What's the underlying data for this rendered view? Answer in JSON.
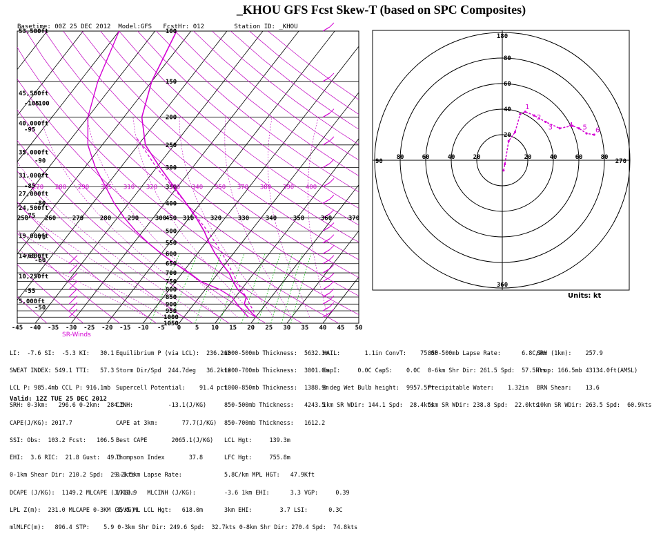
{
  "title": "_KHOU GFS Fcst Skew-T (based on SPC Composites)",
  "header": {
    "baseline_label": "Basetime:",
    "baseline": "00Z 25 DEC 2012",
    "model_label": "Model:",
    "model": "GFS",
    "fcsthr_label": "FcstHr:",
    "fcsthr": "012",
    "station_label": "Station ID:",
    "station": "_KHOU"
  },
  "chart_data": [
    {
      "type": "line",
      "name": "skew-t",
      "xlabel": "",
      "ylabel": "",
      "xlim": [
        -45,
        50
      ],
      "x_ticks": [
        -45,
        -40,
        -35,
        -30,
        -25,
        -20,
        -15,
        -10,
        -5,
        0,
        5,
        10,
        15,
        20,
        25,
        30,
        35,
        40,
        45,
        50
      ],
      "pressure_ticks": [
        100,
        150,
        200,
        250,
        300,
        350,
        400,
        450,
        500,
        550,
        600,
        650,
        700,
        750,
        800,
        850,
        900,
        950,
        1000,
        1050
      ],
      "height_labels": [
        "53,500ft",
        "45,500ft",
        "40,000ft",
        "35,000ft",
        "31,000ft",
        "27,000ft",
        "24,500ft",
        "19,000ft",
        "14,300ft",
        "10,250ft",
        "5,000ft"
      ],
      "left_temp_labels": [
        "-105",
        "-100",
        "-95",
        "-90",
        "-85",
        "-80",
        "-75",
        "-70",
        "-65",
        "-60",
        "-55",
        "-50"
      ],
      "theta_labels": [
        "250",
        "260",
        "270",
        "280",
        "290",
        "300",
        "310",
        "320",
        "330",
        "340",
        "350",
        "360",
        "370"
      ],
      "thetae_labels": [
        "270",
        "280",
        "290",
        "305",
        "310",
        "320",
        "330",
        "340",
        "350",
        "370",
        "380",
        "390",
        "400"
      ],
      "temperature_profile": [
        {
          "p": 1000,
          "t": 20
        },
        {
          "p": 950,
          "t": 17
        },
        {
          "p": 900,
          "t": 14
        },
        {
          "p": 850,
          "t": 13
        },
        {
          "p": 800,
          "t": 9
        },
        {
          "p": 750,
          "t": 6
        },
        {
          "p": 700,
          "t": 3
        },
        {
          "p": 650,
          "t": -1
        },
        {
          "p": 600,
          "t": -5
        },
        {
          "p": 550,
          "t": -9
        },
        {
          "p": 500,
          "t": -13
        },
        {
          "p": 450,
          "t": -18
        },
        {
          "p": 400,
          "t": -24
        },
        {
          "p": 350,
          "t": -31
        },
        {
          "p": 300,
          "t": -39
        },
        {
          "p": 250,
          "t": -48
        },
        {
          "p": 200,
          "t": -55
        },
        {
          "p": 150,
          "t": -60
        },
        {
          "p": 100,
          "t": -64
        }
      ],
      "dewpoint_profile": [
        {
          "p": 1000,
          "t": 18
        },
        {
          "p": 950,
          "t": 15
        },
        {
          "p": 900,
          "t": 12
        },
        {
          "p": 850,
          "t": 9
        },
        {
          "p": 800,
          "t": 4
        },
        {
          "p": 750,
          "t": -3
        },
        {
          "p": 700,
          "t": -8
        },
        {
          "p": 650,
          "t": -14
        },
        {
          "p": 600,
          "t": -20
        },
        {
          "p": 550,
          "t": -26
        },
        {
          "p": 500,
          "t": -32
        },
        {
          "p": 450,
          "t": -38
        },
        {
          "p": 400,
          "t": -44
        },
        {
          "p": 350,
          "t": -50
        },
        {
          "p": 300,
          "t": -57
        },
        {
          "p": 250,
          "t": -64
        },
        {
          "p": 200,
          "t": -70
        },
        {
          "p": 150,
          "t": -75
        },
        {
          "p": 100,
          "t": -80
        }
      ],
      "parcel_profile": [
        {
          "p": 1000,
          "t": 20
        },
        {
          "p": 950,
          "t": 18
        },
        {
          "p": 900,
          "t": 15.5
        },
        {
          "p": 850,
          "t": 13
        },
        {
          "p": 800,
          "t": 10
        },
        {
          "p": 700,
          "t": 4
        },
        {
          "p": 600,
          "t": -3
        },
        {
          "p": 500,
          "t": -12
        },
        {
          "p": 400,
          "t": -24
        },
        {
          "p": 300,
          "t": -40
        },
        {
          "p": 236,
          "t": -52
        }
      ],
      "colors": {
        "temperature": "#d400d4",
        "dewpoint": "#d400d4",
        "parcel": "#d400d4",
        "dry_adiabat": "#c000c0",
        "moist_adiabat": "#c000c0",
        "mixing_ratio": "#00c000",
        "isotherm": "#000000",
        "isobar": "#000000"
      }
    },
    {
      "type": "scatter",
      "name": "hodograph",
      "xlabel": "",
      "ylabel": "",
      "ring_labels_right": [
        "20",
        "40",
        "60",
        "80"
      ],
      "ring_labels_left": [
        "20",
        "40",
        "60",
        "80"
      ],
      "ring_labels_top": [
        "20",
        "40",
        "60",
        "80"
      ],
      "axis_labels": {
        "top": "180",
        "bottom": "360",
        "left": "90",
        "right": "270"
      },
      "points": [
        {
          "u": 1,
          "v": -8
        },
        {
          "u": 2,
          "v": -3
        },
        {
          "u": 5,
          "v": 15
        },
        {
          "u": 10,
          "v": 22
        },
        {
          "u": 14,
          "v": 36
        },
        {
          "u": 18,
          "v": 38
        },
        {
          "u": 25,
          "v": 35
        },
        {
          "u": 34,
          "v": 30
        },
        {
          "u": 45,
          "v": 25
        },
        {
          "u": 55,
          "v": 27
        },
        {
          "u": 60,
          "v": 25
        },
        {
          "u": 66,
          "v": 21
        },
        {
          "u": 72,
          "v": 20
        }
      ],
      "point_labels": [
        {
          "text": "1",
          "u": 18,
          "v": 40
        },
        {
          "text": "2",
          "u": 27,
          "v": 32
        },
        {
          "text": "3",
          "u": 36,
          "v": 24
        },
        {
          "text": "4",
          "u": 52,
          "v": 26
        },
        {
          "text": "5",
          "u": 63,
          "v": 24
        },
        {
          "text": "6",
          "u": 73,
          "v": 22
        }
      ],
      "color": "#d400d4"
    }
  ],
  "units_label": "Units: kt",
  "srwinds_label": "SR-Winds",
  "indices_col1": [
    "LI:  -7.6 SI:  -5.3 KI:   30.1",
    "SWEAT INDEX: 549.1 TTI:   57.3",
    "LCL P: 985.4mb CCL P: 916.1mb",
    "SRH: 0-3km:   296.6 0-2km:  284.5",
    "CAPE(J/KG): 2017.7",
    "SSI: Obs:  103.2 Fcst:   106.5",
    "EHI:  3.6 RIC:  21.8 Gust:  49.3",
    "0-1km Shear Dir: 210.2 Spd:  29.2kts",
    "DCAPE (J/KG):  1149.2 MLCAPE (J/KG):",
    "LPL Z(m):  231.0 MLCAPE 0-3KM (J/KG):",
    "mlMLFC(m):   896.4 STP:    5.9 0-3km Shr Dir: 249.6 Spd:  32.7kts 0-8km Shr Dir: 270.4 Spd:  74.8kts"
  ],
  "indices_col2": [
    "Equilibrium P (via LCL):  236.2mb",
    "Storm Dir/Spd  244.7deg   36.2kts",
    "Supercell Potential:    91.4 pct",
    "CINH:          -13.1(J/KG)",
    "CAPE at 3km:       77.7(J/KG)",
    "Best CAPE       2065.1(J/KG)",
    "Thompson Index       37.8",
    "0-1.5km Lapse Rate:",
    "1710.9   MLCINH (J/KG):",
    "35.5 ML LCL Hgt:   618.0m"
  ],
  "indices_col3": [
    "1000-500mb Thickness:  5632.3m",
    "1000-700mb Thickness:  3001.0m",
    "1000-850mb Thickness:  1388.9m",
    "850-500mb Thickness:   4243.5",
    "850-700mb Thickness:   1612.2",
    "LCL Hgt:     139.3m",
    "LFC Hgt:     755.8m",
    "5.8C/km MPL HGT:   47.9Kft",
    "-3.6 1km EHI:      3.3 VGP:     0.39",
    "3km EHI:        3.7 LSI:      0.3C"
  ],
  "indices_col4": [
    "HAIL:       1.1in ConvT:    75.0F",
    "CapI:     0.0C CapS:    0.0C",
    "0 deg Wet Bulb height:  9957.5ft",
    "1km SR WDir: 144.1 Spd:  28.4kts"
  ],
  "indices_col5": [
    "850-500mb Lapse Rate:      6.8C/km",
    "0-6km Shr Dir: 261.5 Spd:  57.5kts",
    "Precipitable Water:    1.32in",
    "5km SR WDir: 238.8 Spd:  22.0kts"
  ],
  "indices_col6": [
    "SRH (1km):    257.9",
    "Trop: 166.5mb 43134.0ft(AMSL)",
    "BRN Shear:    13.6",
    "10km SR WDir: 263.5 Spd:  60.9kts"
  ],
  "valid": "Valid: 12Z TUE 25 DEC 2012"
}
